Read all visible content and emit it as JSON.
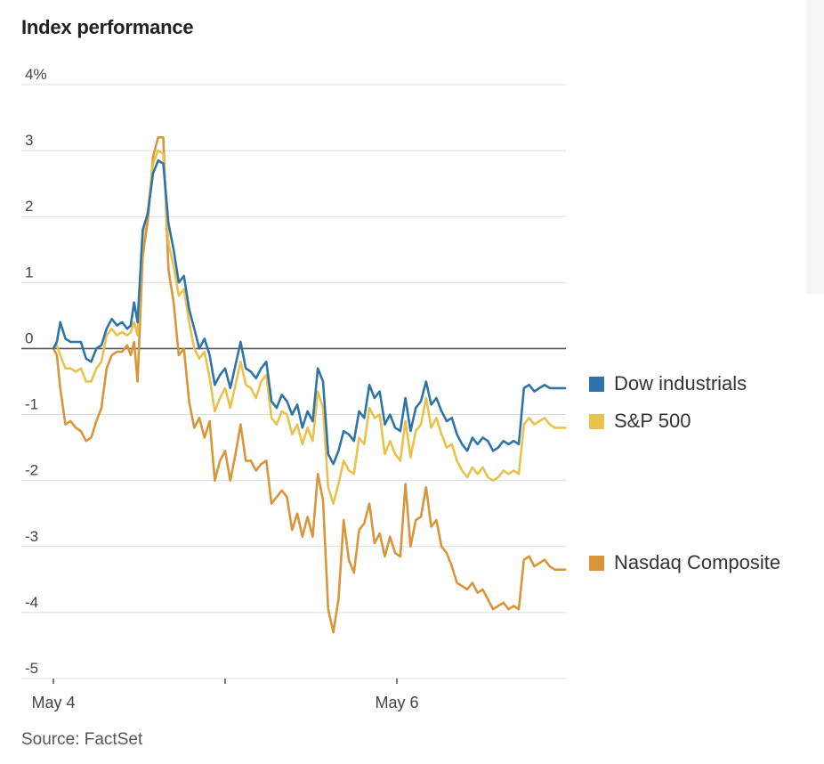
{
  "title": "Index performance",
  "source": "Source: FactSet",
  "colors": {
    "dow": "#2f74a8",
    "sp500": "#e8c24c",
    "nasdaq": "#d9953a",
    "grid": "#dcdcdc",
    "zero": "#555555"
  },
  "chart_data": {
    "type": "line",
    "title": "Index performance",
    "xlabel": "",
    "ylabel": "",
    "x_tick_labels": [
      "May 4",
      "May 6"
    ],
    "y_tick_labels": [
      "4%",
      "3",
      "2",
      "1",
      "0",
      "-1",
      "-2",
      "-3",
      "-4",
      "-5"
    ],
    "ylim": [
      -5,
      4
    ],
    "grid": true,
    "legend_position": "right",
    "series": [
      {
        "name": "Dow industrials",
        "color": "#2f74a8",
        "x": [
          0,
          0.02,
          0.04,
          0.07,
          0.1,
          0.13,
          0.16,
          0.19,
          0.22,
          0.25,
          0.28,
          0.31,
          0.34,
          0.37,
          0.4,
          0.43,
          0.45,
          0.47,
          0.49,
          0.52,
          0.55,
          0.58,
          0.61,
          0.64,
          0.67,
          0.7,
          0.73,
          0.76,
          0.79,
          0.82,
          0.85,
          0.88,
          0.91,
          0.94,
          0.97,
          1.0,
          1.03,
          1.06,
          1.09,
          1.12,
          1.15,
          1.18,
          1.21,
          1.24,
          1.27,
          1.3,
          1.33,
          1.36,
          1.39,
          1.42,
          1.45,
          1.48,
          1.51,
          1.54,
          1.57,
          1.6,
          1.63,
          1.66,
          1.69,
          1.72,
          1.75,
          1.78,
          1.81,
          1.84,
          1.87,
          1.9,
          1.93,
          1.96,
          1.99,
          2.02,
          2.05,
          2.08,
          2.11,
          2.14,
          2.17,
          2.2,
          2.23,
          2.26,
          2.29,
          2.32,
          2.35,
          2.38,
          2.41,
          2.44,
          2.47,
          2.5,
          2.53,
          2.56,
          2.59,
          2.62,
          2.65,
          2.68,
          2.71,
          2.74,
          2.77,
          2.8,
          2.83,
          2.86,
          2.89,
          2.92,
          2.95,
          2.98
        ],
        "values": [
          0.0,
          0.1,
          0.4,
          0.15,
          0.1,
          0.1,
          0.1,
          -0.15,
          -0.2,
          0.0,
          0.05,
          0.3,
          0.45,
          0.35,
          0.4,
          0.3,
          0.35,
          0.7,
          0.4,
          1.8,
          2.05,
          2.65,
          2.85,
          2.8,
          1.9,
          1.5,
          1.0,
          1.1,
          0.6,
          0.3,
          0.0,
          0.15,
          -0.1,
          -0.55,
          -0.4,
          -0.3,
          -0.6,
          -0.25,
          0.1,
          -0.3,
          -0.35,
          -0.45,
          -0.3,
          -0.2,
          -0.8,
          -0.9,
          -0.7,
          -0.8,
          -1.0,
          -0.85,
          -1.2,
          -0.95,
          -1.1,
          -0.3,
          -0.5,
          -1.6,
          -1.75,
          -1.55,
          -1.25,
          -1.3,
          -1.4,
          -0.95,
          -1.05,
          -0.55,
          -0.75,
          -0.65,
          -1.15,
          -1.0,
          -1.2,
          -1.25,
          -0.75,
          -1.25,
          -0.9,
          -0.8,
          -0.5,
          -0.85,
          -0.75,
          -0.95,
          -1.1,
          -1.05,
          -1.3,
          -1.45,
          -1.55,
          -1.35,
          -1.45,
          -1.35,
          -1.4,
          -1.55,
          -1.5,
          -1.4,
          -1.45,
          -1.4,
          -1.45,
          -0.6,
          -0.55,
          -0.65,
          -0.6,
          -0.55,
          -0.6,
          -0.6,
          -0.6,
          -0.6
        ]
      },
      {
        "name": "S&P 500",
        "color": "#e8c24c",
        "x": [
          0,
          0.02,
          0.04,
          0.07,
          0.1,
          0.13,
          0.16,
          0.19,
          0.22,
          0.25,
          0.28,
          0.31,
          0.34,
          0.37,
          0.4,
          0.43,
          0.45,
          0.47,
          0.49,
          0.52,
          0.55,
          0.58,
          0.61,
          0.64,
          0.67,
          0.7,
          0.73,
          0.76,
          0.79,
          0.82,
          0.85,
          0.88,
          0.91,
          0.94,
          0.97,
          1.0,
          1.03,
          1.06,
          1.09,
          1.12,
          1.15,
          1.18,
          1.21,
          1.24,
          1.27,
          1.3,
          1.33,
          1.36,
          1.39,
          1.42,
          1.45,
          1.48,
          1.51,
          1.54,
          1.57,
          1.6,
          1.63,
          1.66,
          1.69,
          1.72,
          1.75,
          1.78,
          1.81,
          1.84,
          1.87,
          1.9,
          1.93,
          1.96,
          1.99,
          2.02,
          2.05,
          2.08,
          2.11,
          2.14,
          2.17,
          2.2,
          2.23,
          2.26,
          2.29,
          2.32,
          2.35,
          2.38,
          2.41,
          2.44,
          2.47,
          2.5,
          2.53,
          2.56,
          2.59,
          2.62,
          2.65,
          2.68,
          2.71,
          2.74,
          2.77,
          2.8,
          2.83,
          2.86,
          2.89,
          2.92,
          2.95,
          2.98
        ],
        "values": [
          0.0,
          0.05,
          -0.1,
          -0.3,
          -0.3,
          -0.35,
          -0.3,
          -0.5,
          -0.5,
          -0.3,
          -0.2,
          0.2,
          0.3,
          0.2,
          0.25,
          0.2,
          0.25,
          0.4,
          0.2,
          1.7,
          2.1,
          2.8,
          3.0,
          2.95,
          1.6,
          1.25,
          0.8,
          0.9,
          0.4,
          0.0,
          -0.15,
          -0.05,
          -0.45,
          -0.95,
          -0.75,
          -0.6,
          -0.9,
          -0.55,
          -0.2,
          -0.55,
          -0.6,
          -0.75,
          -0.5,
          -0.4,
          -1.05,
          -1.15,
          -0.95,
          -1.0,
          -1.3,
          -1.15,
          -1.45,
          -1.2,
          -1.4,
          -0.65,
          -0.9,
          -2.1,
          -2.35,
          -2.05,
          -1.7,
          -1.85,
          -1.9,
          -1.35,
          -1.45,
          -0.9,
          -1.05,
          -1.0,
          -1.6,
          -1.4,
          -1.6,
          -1.7,
          -1.1,
          -1.65,
          -1.25,
          -1.15,
          -0.75,
          -1.2,
          -1.05,
          -1.3,
          -1.5,
          -1.45,
          -1.7,
          -1.85,
          -1.95,
          -1.8,
          -1.9,
          -1.8,
          -1.95,
          -2.0,
          -1.95,
          -1.85,
          -1.9,
          -1.85,
          -1.9,
          -1.15,
          -1.05,
          -1.15,
          -1.1,
          -1.05,
          -1.15,
          -1.2,
          -1.2,
          -1.2
        ]
      },
      {
        "name": "Nasdaq Composite",
        "color": "#d9953a",
        "x": [
          0,
          0.02,
          0.04,
          0.07,
          0.1,
          0.13,
          0.16,
          0.19,
          0.22,
          0.25,
          0.28,
          0.31,
          0.34,
          0.37,
          0.4,
          0.43,
          0.45,
          0.47,
          0.49,
          0.52,
          0.55,
          0.58,
          0.61,
          0.64,
          0.67,
          0.7,
          0.73,
          0.76,
          0.79,
          0.82,
          0.85,
          0.88,
          0.91,
          0.94,
          0.97,
          1.0,
          1.03,
          1.06,
          1.09,
          1.12,
          1.15,
          1.18,
          1.21,
          1.24,
          1.27,
          1.3,
          1.33,
          1.36,
          1.39,
          1.42,
          1.45,
          1.48,
          1.51,
          1.54,
          1.57,
          1.6,
          1.63,
          1.66,
          1.69,
          1.72,
          1.75,
          1.78,
          1.81,
          1.84,
          1.87,
          1.9,
          1.93,
          1.96,
          1.99,
          2.02,
          2.05,
          2.08,
          2.11,
          2.14,
          2.17,
          2.2,
          2.23,
          2.26,
          2.29,
          2.32,
          2.35,
          2.38,
          2.41,
          2.44,
          2.47,
          2.5,
          2.53,
          2.56,
          2.59,
          2.62,
          2.65,
          2.68,
          2.71,
          2.74,
          2.77,
          2.8,
          2.83,
          2.86,
          2.89,
          2.92,
          2.95,
          2.98
        ],
        "values": [
          0.0,
          -0.1,
          -0.6,
          -1.15,
          -1.1,
          -1.2,
          -1.25,
          -1.4,
          -1.35,
          -1.1,
          -0.9,
          -0.3,
          -0.1,
          -0.05,
          -0.05,
          0.05,
          -0.1,
          0.1,
          -0.5,
          1.4,
          1.95,
          2.9,
          3.2,
          3.2,
          1.2,
          0.7,
          -0.1,
          0.0,
          -0.8,
          -1.2,
          -1.05,
          -1.35,
          -1.1,
          -2.0,
          -1.7,
          -1.55,
          -2.0,
          -1.6,
          -1.15,
          -1.7,
          -1.7,
          -1.85,
          -1.75,
          -1.7,
          -2.35,
          -2.25,
          -2.15,
          -2.25,
          -2.75,
          -2.5,
          -2.85,
          -2.55,
          -2.85,
          -1.9,
          -2.3,
          -3.95,
          -4.3,
          -3.8,
          -2.6,
          -3.2,
          -3.4,
          -2.75,
          -2.65,
          -2.35,
          -2.95,
          -2.8,
          -3.15,
          -2.85,
          -3.1,
          -3.15,
          -2.05,
          -3.0,
          -2.6,
          -2.55,
          -2.1,
          -2.7,
          -2.6,
          -3.0,
          -3.1,
          -3.3,
          -3.55,
          -3.6,
          -3.65,
          -3.55,
          -3.7,
          -3.65,
          -3.8,
          -3.95,
          -3.9,
          -3.85,
          -3.95,
          -3.9,
          -3.95,
          -3.2,
          -3.15,
          -3.3,
          -3.25,
          -3.2,
          -3.3,
          -3.35,
          -3.35,
          -3.35
        ]
      }
    ]
  }
}
